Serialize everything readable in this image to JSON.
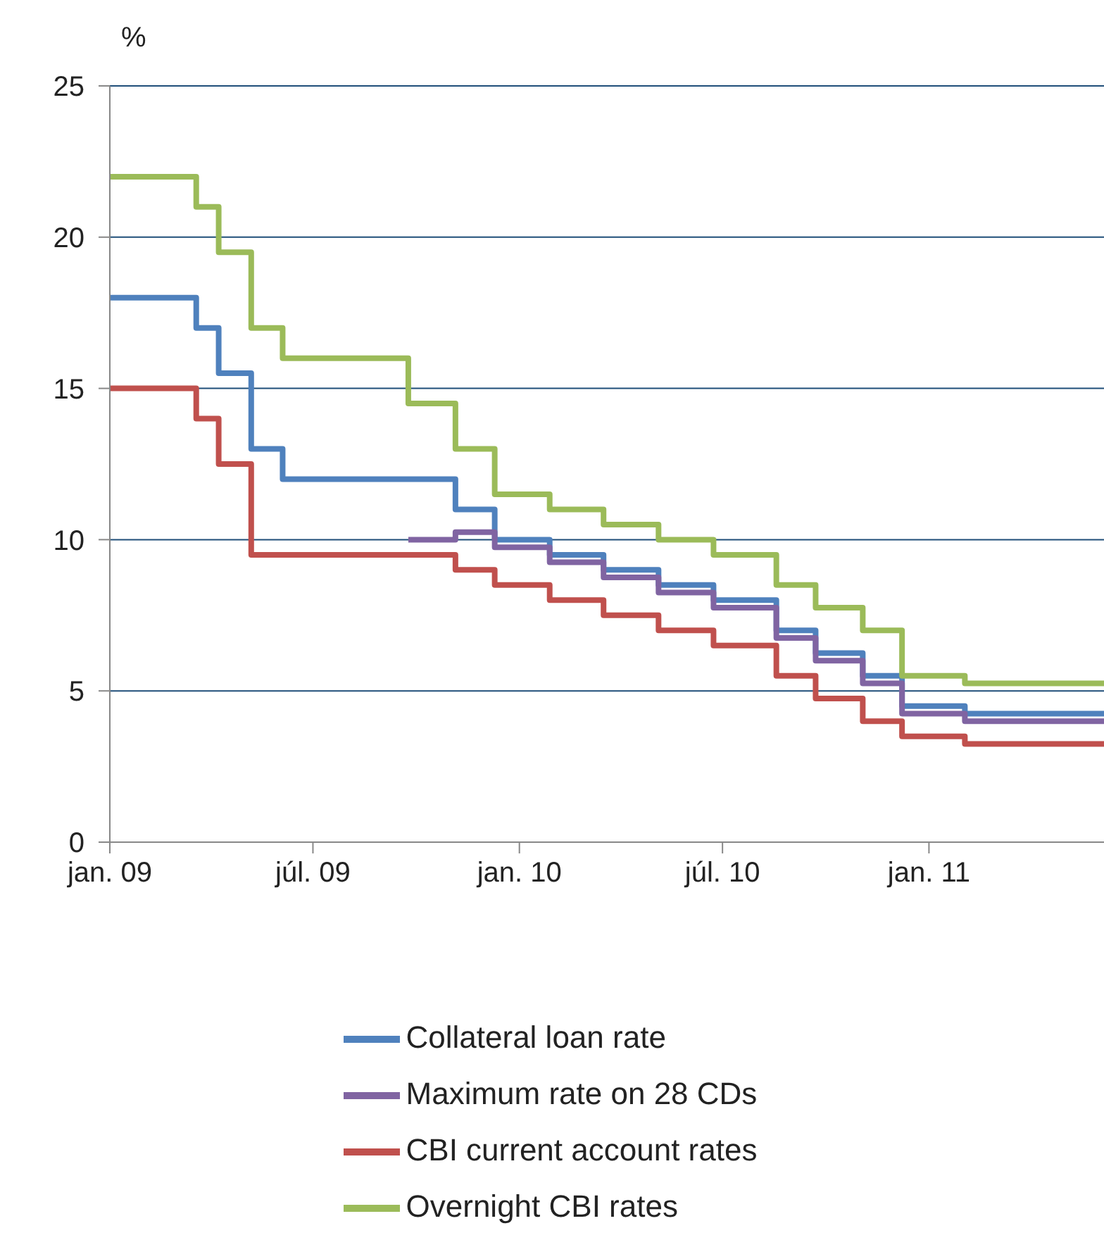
{
  "chart_data": {
    "type": "step",
    "ylabel": "%",
    "x": [
      "2009-01-01",
      "2009-03-19",
      "2009-04-08",
      "2009-05-07",
      "2009-06-04",
      "2009-09-24",
      "2009-11-05",
      "2009-12-10",
      "2010-01-28",
      "2010-03-17",
      "2010-05-05",
      "2010-06-23",
      "2010-08-18",
      "2010-09-22",
      "2010-11-03",
      "2010-12-08",
      "2011-02-02",
      "2011-06-06"
    ],
    "series": [
      {
        "name": "Collateral loan rate",
        "color": "#4f81bd",
        "values": [
          18,
          17,
          15.5,
          13,
          12,
          12,
          11,
          10,
          9.5,
          9,
          8.5,
          8,
          7,
          6.25,
          5.5,
          4.5,
          4.25,
          4.25
        ]
      },
      {
        "name": "Maximum rate on 28 CDs",
        "color": "#8064a2",
        "values": [
          null,
          null,
          null,
          null,
          null,
          10,
          10.25,
          9.75,
          9.25,
          8.75,
          8.25,
          7.75,
          6.75,
          6,
          5.25,
          4.25,
          4,
          4
        ]
      },
      {
        "name": "CBI current account rates",
        "color": "#c0504d",
        "values": [
          15,
          14,
          12.5,
          9.5,
          9.5,
          9.5,
          9,
          8.5,
          8,
          7.5,
          7,
          6.5,
          5.5,
          4.75,
          4,
          3.5,
          3.25,
          3.25
        ]
      },
      {
        "name": "Overnight CBI rates",
        "color": "#9bbb59",
        "values": [
          22,
          21,
          19.5,
          17,
          16,
          14.5,
          13,
          11.5,
          11,
          10.5,
          10,
          9.5,
          8.5,
          7.75,
          7,
          5.5,
          5.25,
          5.25
        ]
      }
    ],
    "xlim": [
      "2009-01-01",
      "2011-06-06"
    ],
    "xticks": [
      {
        "value": "2009-01-01",
        "label": "jan. 09"
      },
      {
        "value": "2009-07-01",
        "label": "júl. 09"
      },
      {
        "value": "2010-01-01",
        "label": "jan. 10"
      },
      {
        "value": "2010-07-01",
        "label": "júl. 10"
      },
      {
        "value": "2011-01-01",
        "label": "jan. 11"
      }
    ],
    "ylim": [
      0,
      25
    ],
    "yticks": [
      0,
      5,
      10,
      15,
      20,
      25
    ],
    "grid": "y",
    "legend": "bottom",
    "line_style": "solid",
    "marker": "none"
  }
}
